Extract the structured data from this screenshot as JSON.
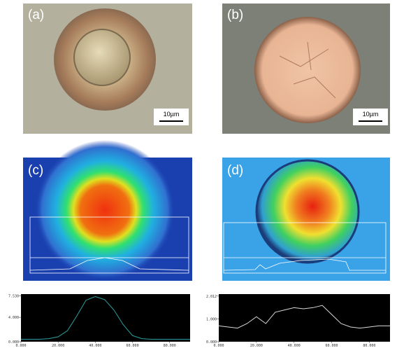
{
  "panels": [
    {
      "label": "(a)",
      "scale_bar": "10µm"
    },
    {
      "label": "(b)",
      "scale_bar": "10µm"
    },
    {
      "label": "(c)"
    },
    {
      "label": "(d)"
    }
  ],
  "profiles": [
    {
      "x": [
        0,
        5,
        10,
        15,
        20,
        25,
        30,
        35,
        40,
        45,
        50,
        55,
        60,
        65,
        70,
        75,
        80,
        85,
        91
      ],
      "values": [
        0.4,
        0.4,
        0.4,
        0.5,
        0.8,
        1.8,
        4.2,
        6.8,
        7.4,
        6.9,
        5.2,
        2.8,
        1.0,
        0.5,
        0.4,
        0.4,
        0.4,
        0.4,
        0.4
      ],
      "xlim": [
        0,
        91
      ],
      "ylim": [
        0,
        7.8
      ],
      "xticks": [
        {
          "value": 0,
          "label": "0.000"
        },
        {
          "value": 20,
          "label": "20.000"
        },
        {
          "value": 40,
          "label": "40.000"
        },
        {
          "value": 60,
          "label": "60.000"
        },
        {
          "value": 80,
          "label": "80.000"
        }
      ],
      "yticks": [
        {
          "value": 0,
          "label": "0.000"
        },
        {
          "value": 4,
          "label": "4.000"
        },
        {
          "value": 7.53,
          "label": "7.530"
        }
      ]
    },
    {
      "x": [
        0,
        5,
        10,
        15,
        20,
        25,
        30,
        35,
        40,
        45,
        50,
        55,
        60,
        65,
        70,
        75,
        80,
        85,
        91
      ],
      "values": [
        0.7,
        0.65,
        0.6,
        0.8,
        1.1,
        0.8,
        1.3,
        1.4,
        1.5,
        1.45,
        1.5,
        1.6,
        1.2,
        0.8,
        0.65,
        0.6,
        0.65,
        0.7,
        0.7
      ],
      "xlim": [
        0,
        91
      ],
      "ylim": [
        0,
        2.1
      ],
      "xticks": [
        {
          "value": 0,
          "label": "0.000"
        },
        {
          "value": 20,
          "label": "20.000"
        },
        {
          "value": 40,
          "label": "40.000"
        },
        {
          "value": 60,
          "label": "60.000"
        },
        {
          "value": 80,
          "label": "80.000"
        }
      ],
      "yticks": [
        {
          "value": 0,
          "label": "0.000"
        },
        {
          "value": 1,
          "label": "1.000"
        },
        {
          "value": 2.012,
          "label": "2.012"
        }
      ]
    }
  ]
}
